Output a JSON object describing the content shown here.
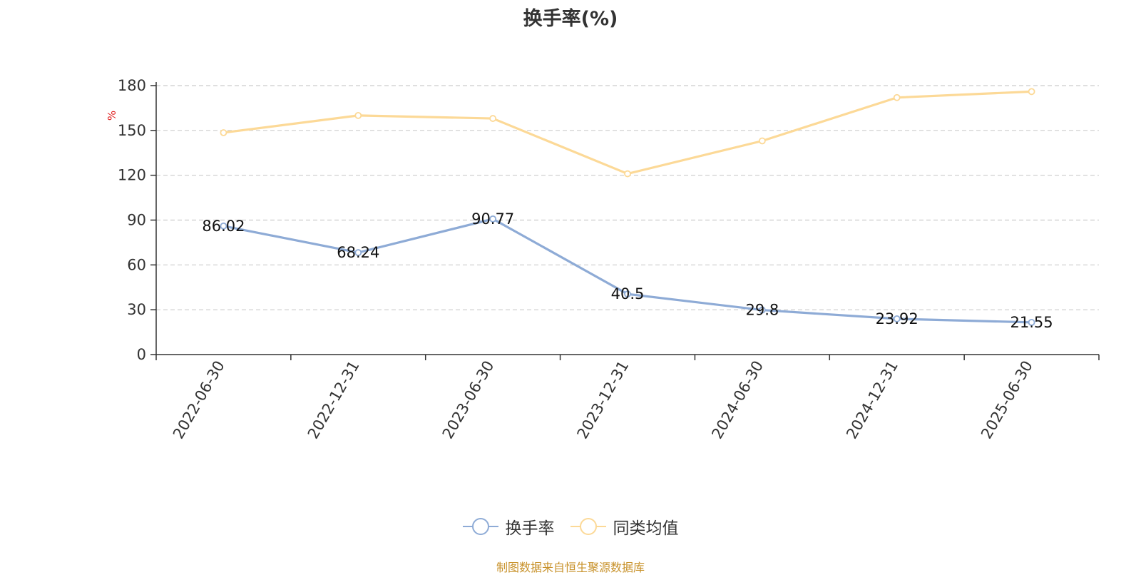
{
  "title": "换手率(%)",
  "footer": "制图数据来自恒生聚源数据库",
  "chart_data": {
    "type": "line",
    "title": "换手率(%)",
    "ylabel": "%",
    "xlabel": "",
    "ylim": [
      0,
      180
    ],
    "yticks": [
      0,
      30,
      60,
      90,
      120,
      150,
      180
    ],
    "grid": true,
    "legend_position": "bottom",
    "categories": [
      "2022-06-30",
      "2022-12-31",
      "2023-06-30",
      "2023-12-31",
      "2024-06-30",
      "2024-12-31",
      "2025-06-30"
    ],
    "series": [
      {
        "name": "换手率",
        "color": "#8eabd6",
        "values": [
          86.02,
          68.24,
          90.77,
          40.5,
          29.8,
          23.92,
          21.55
        ],
        "labels": [
          "86.02",
          "68.24",
          "90.77",
          "40.5",
          "29.8",
          "23.92",
          "21.55"
        ],
        "show_labels": true
      },
      {
        "name": "同类均值",
        "color": "#fcd997",
        "values": [
          148.5,
          160,
          158,
          121,
          143,
          172,
          176
        ],
        "show_labels": false
      }
    ]
  }
}
